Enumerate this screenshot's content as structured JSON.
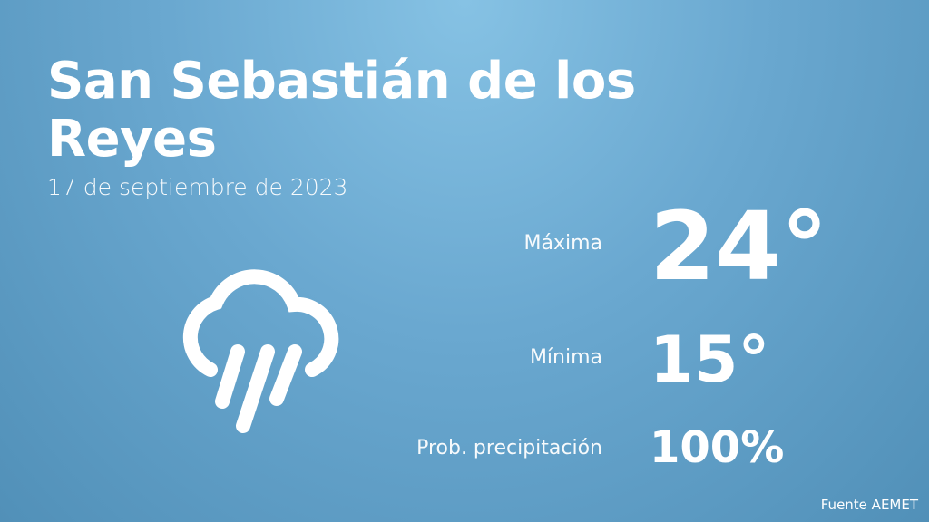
{
  "title": "San Sebastián de los Reyes",
  "date": "17 de septiembre de 2023",
  "weather_icon": "rain-cloud-icon",
  "stats": [
    {
      "label": "Máxima",
      "value": "24°"
    },
    {
      "label": "Mínima",
      "value": "15°"
    },
    {
      "label": "Prob. precipitación",
      "value": "100%"
    }
  ],
  "source": "Fuente AEMET",
  "colors": {
    "background_top": "#86c2e4",
    "background_bottom": "#5190b8",
    "text": "#ffffff"
  }
}
